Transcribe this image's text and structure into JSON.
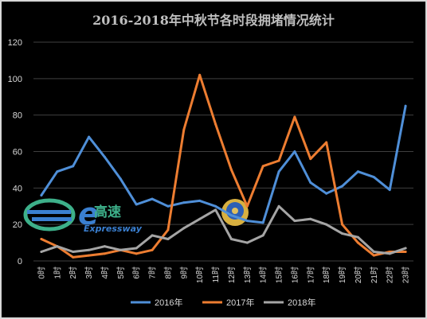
{
  "chart_data": {
    "type": "line",
    "title": "2016-2018年中秋节各时段拥堵情况统计",
    "xlabel": "",
    "ylabel": "",
    "x": [
      "0时",
      "1时",
      "2时",
      "3时",
      "4时",
      "5时",
      "6时",
      "7时",
      "8时",
      "9时",
      "10时",
      "11时",
      "12时",
      "13时",
      "14时",
      "15时",
      "16时",
      "17时",
      "18时",
      "19时",
      "20时",
      "21时",
      "22时",
      "23时"
    ],
    "ylim": [
      0,
      120
    ],
    "yticks": [
      0,
      20,
      40,
      60,
      80,
      100,
      120
    ],
    "grid": true,
    "legend_position": "bottom",
    "series": [
      {
        "name": "2016年",
        "color": "#4f8fd8",
        "values": [
          36,
          49,
          52,
          68,
          57,
          45,
          31,
          34,
          30,
          32,
          33,
          30,
          25,
          22,
          21,
          49,
          60,
          43,
          37,
          41,
          49,
          46,
          39,
          85
        ]
      },
      {
        "name": "2017年",
        "color": "#ed7d31",
        "values": [
          12,
          8,
          2,
          3,
          4,
          6,
          4,
          6,
          17,
          72,
          102,
          75,
          50,
          30,
          52,
          55,
          79,
          56,
          65,
          20,
          10,
          3,
          5,
          5
        ]
      },
      {
        "name": "2018年",
        "color": "#a5a5a5",
        "values": [
          5,
          8,
          5,
          6,
          8,
          6,
          7,
          14,
          12,
          18,
          23,
          28,
          12,
          10,
          14,
          30,
          22,
          23,
          20,
          15,
          13,
          5,
          4,
          7
        ]
      }
    ]
  },
  "watermark": {
    "logo_letter": "e",
    "brand_cn": "高速",
    "brand_en": "Expressway"
  }
}
